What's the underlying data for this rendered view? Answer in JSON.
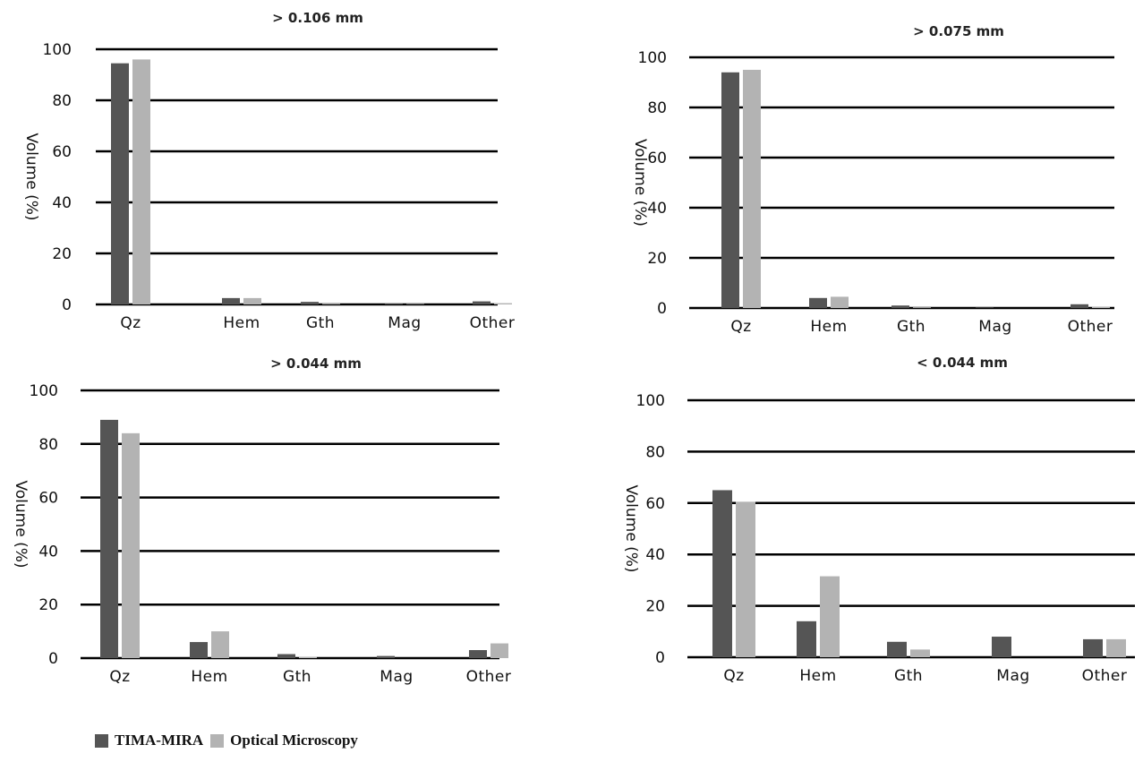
{
  "colors": {
    "series1": "#555555",
    "series2": "#b3b3b3",
    "gridline": "#000000"
  },
  "legend": {
    "items": [
      {
        "label": "TIMA-MIRA",
        "color": "#555555"
      },
      {
        "label": "Optical Microscopy",
        "color": "#b3b3b3"
      }
    ],
    "placement": "bottom-left"
  },
  "chart_data": [
    {
      "type": "bar",
      "title": "> 0.106 mm",
      "ylabel": "Volume (%)",
      "ylim": [
        0,
        100
      ],
      "yticks": [
        "0",
        "20",
        "40",
        "60",
        "80",
        "100"
      ],
      "categories": [
        "Qz",
        "Hem",
        "Gth",
        "Mag",
        "Other"
      ],
      "series": [
        {
          "name": "TIMA-MIRA",
          "values": [
            94.5,
            2.5,
            1.0,
            0.3,
            1.2
          ]
        },
        {
          "name": "Optical Microscopy",
          "values": [
            96.0,
            2.5,
            0.3,
            0.2,
            0.5
          ]
        }
      ],
      "grid": true
    },
    {
      "type": "bar",
      "title": "> 0.075 mm",
      "ylabel": "Volume (%)",
      "ylim": [
        0,
        100
      ],
      "yticks": [
        "0",
        "20",
        "40",
        "60",
        "80",
        "100"
      ],
      "categories": [
        "Qz",
        "Hem",
        "Gth",
        "Mag",
        "Other"
      ],
      "series": [
        {
          "name": "TIMA-MIRA",
          "values": [
            94.0,
            4.0,
            1.0,
            0.2,
            1.5
          ]
        },
        {
          "name": "Optical Microscopy",
          "values": [
            95.0,
            4.5,
            0.3,
            0.0,
            0.5
          ]
        }
      ],
      "grid": true
    },
    {
      "type": "bar",
      "title": "> 0.044 mm",
      "ylabel": "Volume (%)",
      "ylim": [
        0,
        100
      ],
      "yticks": [
        "0",
        "20",
        "40",
        "60",
        "80",
        "100"
      ],
      "categories": [
        "Qz",
        "Hem",
        "Gth",
        "Mag",
        "Other"
      ],
      "series": [
        {
          "name": "TIMA-MIRA",
          "values": [
            89.0,
            6.0,
            1.5,
            0.8,
            3.0
          ]
        },
        {
          "name": "Optical Microscopy",
          "values": [
            84.0,
            10.0,
            0.5,
            0.0,
            5.5
          ]
        }
      ],
      "grid": true
    },
    {
      "type": "bar",
      "title": "< 0.044 mm",
      "ylabel": "Volume (%)",
      "ylim": [
        0,
        100
      ],
      "yticks": [
        "0",
        "20",
        "40",
        "60",
        "80",
        "100"
      ],
      "categories": [
        "Qz",
        "Hem",
        "Gth",
        "Mag",
        "Other"
      ],
      "series": [
        {
          "name": "TIMA-MIRA",
          "values": [
            65.0,
            14.0,
            6.0,
            8.0,
            7.0
          ]
        },
        {
          "name": "Optical Microscopy",
          "values": [
            60.5,
            31.5,
            3.0,
            0.0,
            7.0
          ]
        }
      ],
      "grid": true
    }
  ]
}
